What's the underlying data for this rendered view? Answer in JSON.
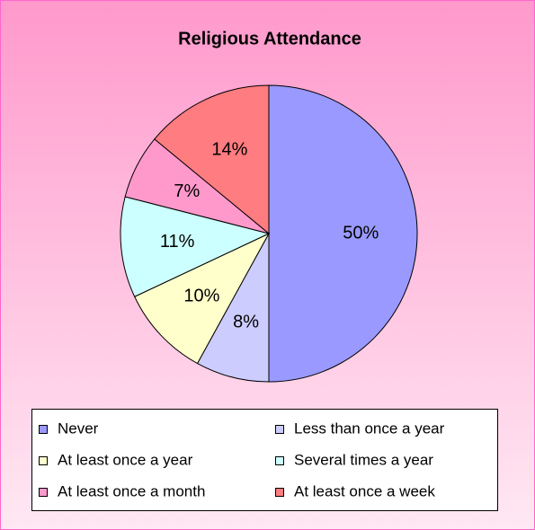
{
  "chart_data": {
    "type": "pie",
    "title": "Religious Attendance",
    "categories": [
      "Never",
      "Less than once a year",
      "At least once a year",
      "Several times a year",
      "At least once a month",
      "At least once a week"
    ],
    "values": [
      50,
      8,
      10,
      11,
      7,
      14
    ],
    "value_labels": [
      "50%",
      "8%",
      "10%",
      "11%",
      "7%",
      "14%"
    ],
    "colors": [
      "#9999ff",
      "#ccccff",
      "#ffffcc",
      "#ccffff",
      "#ff99cc",
      "#ff7c80"
    ],
    "legend": "bottom"
  }
}
